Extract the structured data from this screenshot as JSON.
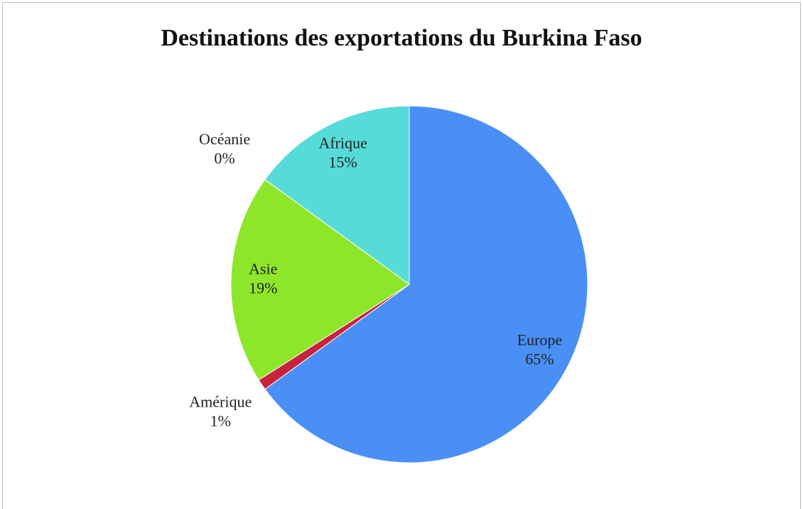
{
  "chart_data": {
    "type": "pie",
    "title": "Destinations des exportations du Burkina Faso",
    "categories": [
      "Europe",
      "Amérique",
      "Asie",
      "Océanie",
      "Afrique"
    ],
    "values": [
      65,
      1,
      19,
      0,
      15
    ],
    "value_labels": [
      "65%",
      "1%",
      "19%",
      "0%",
      "15%"
    ],
    "colors": [
      "#4a8ff5",
      "#c8233c",
      "#8ee62a",
      "#9b59b6",
      "#57dbd8"
    ]
  }
}
